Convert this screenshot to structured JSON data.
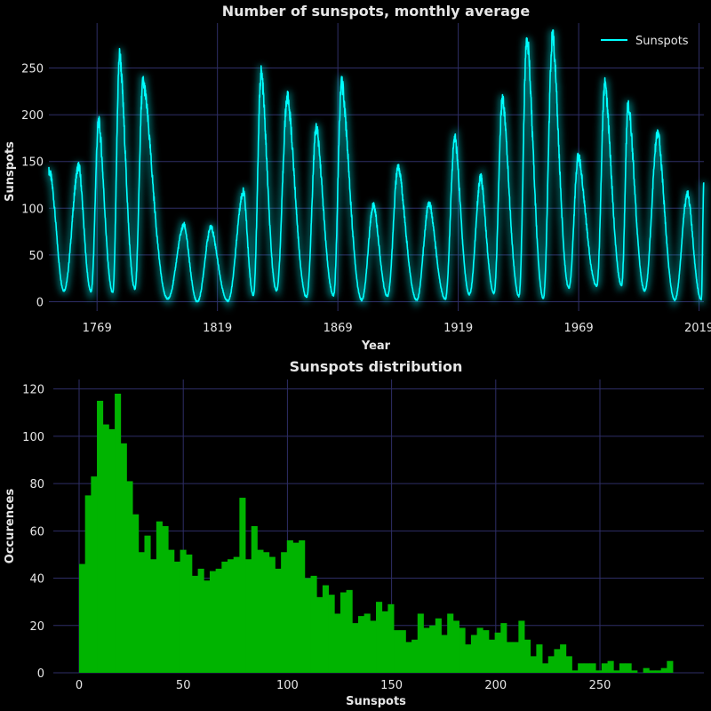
{
  "colors": {
    "background": "#000000",
    "grid": "#2e2e66",
    "line": "#00ffff",
    "bars": "#00b400",
    "text": "#e6e6e6"
  },
  "chart_data": [
    {
      "type": "line",
      "title": "Number of sunspots, monthly average",
      "xlabel": "Year",
      "ylabel": "Sunspots",
      "xlim": [
        1749,
        2021
      ],
      "ylim": [
        -10,
        298
      ],
      "xticks": [
        1769,
        1819,
        1869,
        1919,
        1969,
        2019
      ],
      "yticks": [
        0,
        50,
        100,
        150,
        200,
        250
      ],
      "grid": true,
      "legend": "top-right",
      "series": [
        {
          "name": "Sunspots",
          "color": "#00ffff"
        }
      ],
      "cycles": [
        {
          "min_year": 1755.2,
          "min": 12,
          "max_year": 1761.5,
          "max": 145
        },
        {
          "min_year": 1766.5,
          "min": 11,
          "max_year": 1769.7,
          "max": 193
        },
        {
          "min_year": 1775.5,
          "min": 10,
          "max_year": 1778.4,
          "max": 264
        },
        {
          "min_year": 1784.7,
          "min": 14,
          "max_year": 1788.1,
          "max": 235
        },
        {
          "min_year": 1798.3,
          "min": 3,
          "max_year": 1805.2,
          "max": 82
        },
        {
          "min_year": 1810.6,
          "min": 0,
          "max_year": 1816.4,
          "max": 80
        },
        {
          "min_year": 1823.3,
          "min": 1,
          "max_year": 1829.9,
          "max": 118
        },
        {
          "min_year": 1833.9,
          "min": 7,
          "max_year": 1837.2,
          "max": 245
        },
        {
          "min_year": 1843.5,
          "min": 12,
          "max_year": 1848.1,
          "max": 219
        },
        {
          "min_year": 1856.0,
          "min": 5,
          "max_year": 1860.1,
          "max": 186
        },
        {
          "min_year": 1867.2,
          "min": 7,
          "max_year": 1870.6,
          "max": 234
        },
        {
          "min_year": 1878.9,
          "min": 2,
          "max_year": 1883.9,
          "max": 104
        },
        {
          "min_year": 1889.6,
          "min": 6,
          "max_year": 1894.1,
          "max": 145
        },
        {
          "min_year": 1901.7,
          "min": 2,
          "max_year": 1907.0,
          "max": 106
        },
        {
          "min_year": 1913.6,
          "min": 3,
          "max_year": 1917.6,
          "max": 176
        },
        {
          "min_year": 1923.6,
          "min": 8,
          "max_year": 1928.4,
          "max": 133
        },
        {
          "min_year": 1933.8,
          "min": 9,
          "max_year": 1937.4,
          "max": 218
        },
        {
          "min_year": 1944.2,
          "min": 6,
          "max_year": 1947.5,
          "max": 285
        },
        {
          "min_year": 1954.3,
          "min": 4,
          "max_year": 1958.2,
          "max": 285
        },
        {
          "min_year": 1964.9,
          "min": 15,
          "max_year": 1968.9,
          "max": 156
        },
        {
          "min_year": 1976.5,
          "min": 17,
          "max_year": 1979.9,
          "max": 232
        },
        {
          "min_year": 1986.8,
          "min": 18,
          "max_year": 1989.6,
          "max": 212
        },
        {
          "min_year": 1996.4,
          "min": 12,
          "max_year": 2001.9,
          "max": 180
        },
        {
          "min_year": 2008.9,
          "min": 2,
          "max_year": 2014.3,
          "max": 116
        },
        {
          "min_year": 2019.9,
          "min": 2,
          "max_year": 2021.0,
          "max": 128
        }
      ]
    },
    {
      "type": "bar",
      "title": "Sunspots distribution",
      "xlabel": "Sunspots",
      "ylabel": "Occurences",
      "xlim": [
        -12.5,
        299
      ],
      "ylim": [
        0,
        124
      ],
      "xticks": [
        0,
        50,
        100,
        150,
        200,
        250
      ],
      "yticks": [
        0,
        20,
        40,
        60,
        80,
        100,
        120
      ],
      "grid": true,
      "bin_start": 0,
      "bin_width": 2.85,
      "values": [
        46,
        75,
        83,
        115,
        105,
        103,
        118,
        97,
        81,
        67,
        51,
        58,
        48,
        64,
        62,
        52,
        47,
        52,
        50,
        41,
        44,
        39,
        43,
        44,
        47,
        48,
        49,
        74,
        48,
        62,
        52,
        51,
        49,
        44,
        51,
        56,
        55,
        56,
        40,
        41,
        32,
        37,
        33,
        25,
        34,
        35,
        21,
        24,
        25,
        22,
        30,
        26,
        29,
        18,
        18,
        13,
        14,
        25,
        19,
        20,
        23,
        16,
        25,
        22,
        19,
        12,
        16,
        19,
        18,
        14,
        17,
        21,
        13,
        13,
        22,
        14,
        7,
        12,
        4,
        7,
        10,
        12,
        7,
        1,
        4,
        4,
        4,
        1,
        4,
        5,
        1,
        4,
        4,
        1,
        0,
        2,
        1,
        1,
        2,
        5
      ]
    }
  ]
}
